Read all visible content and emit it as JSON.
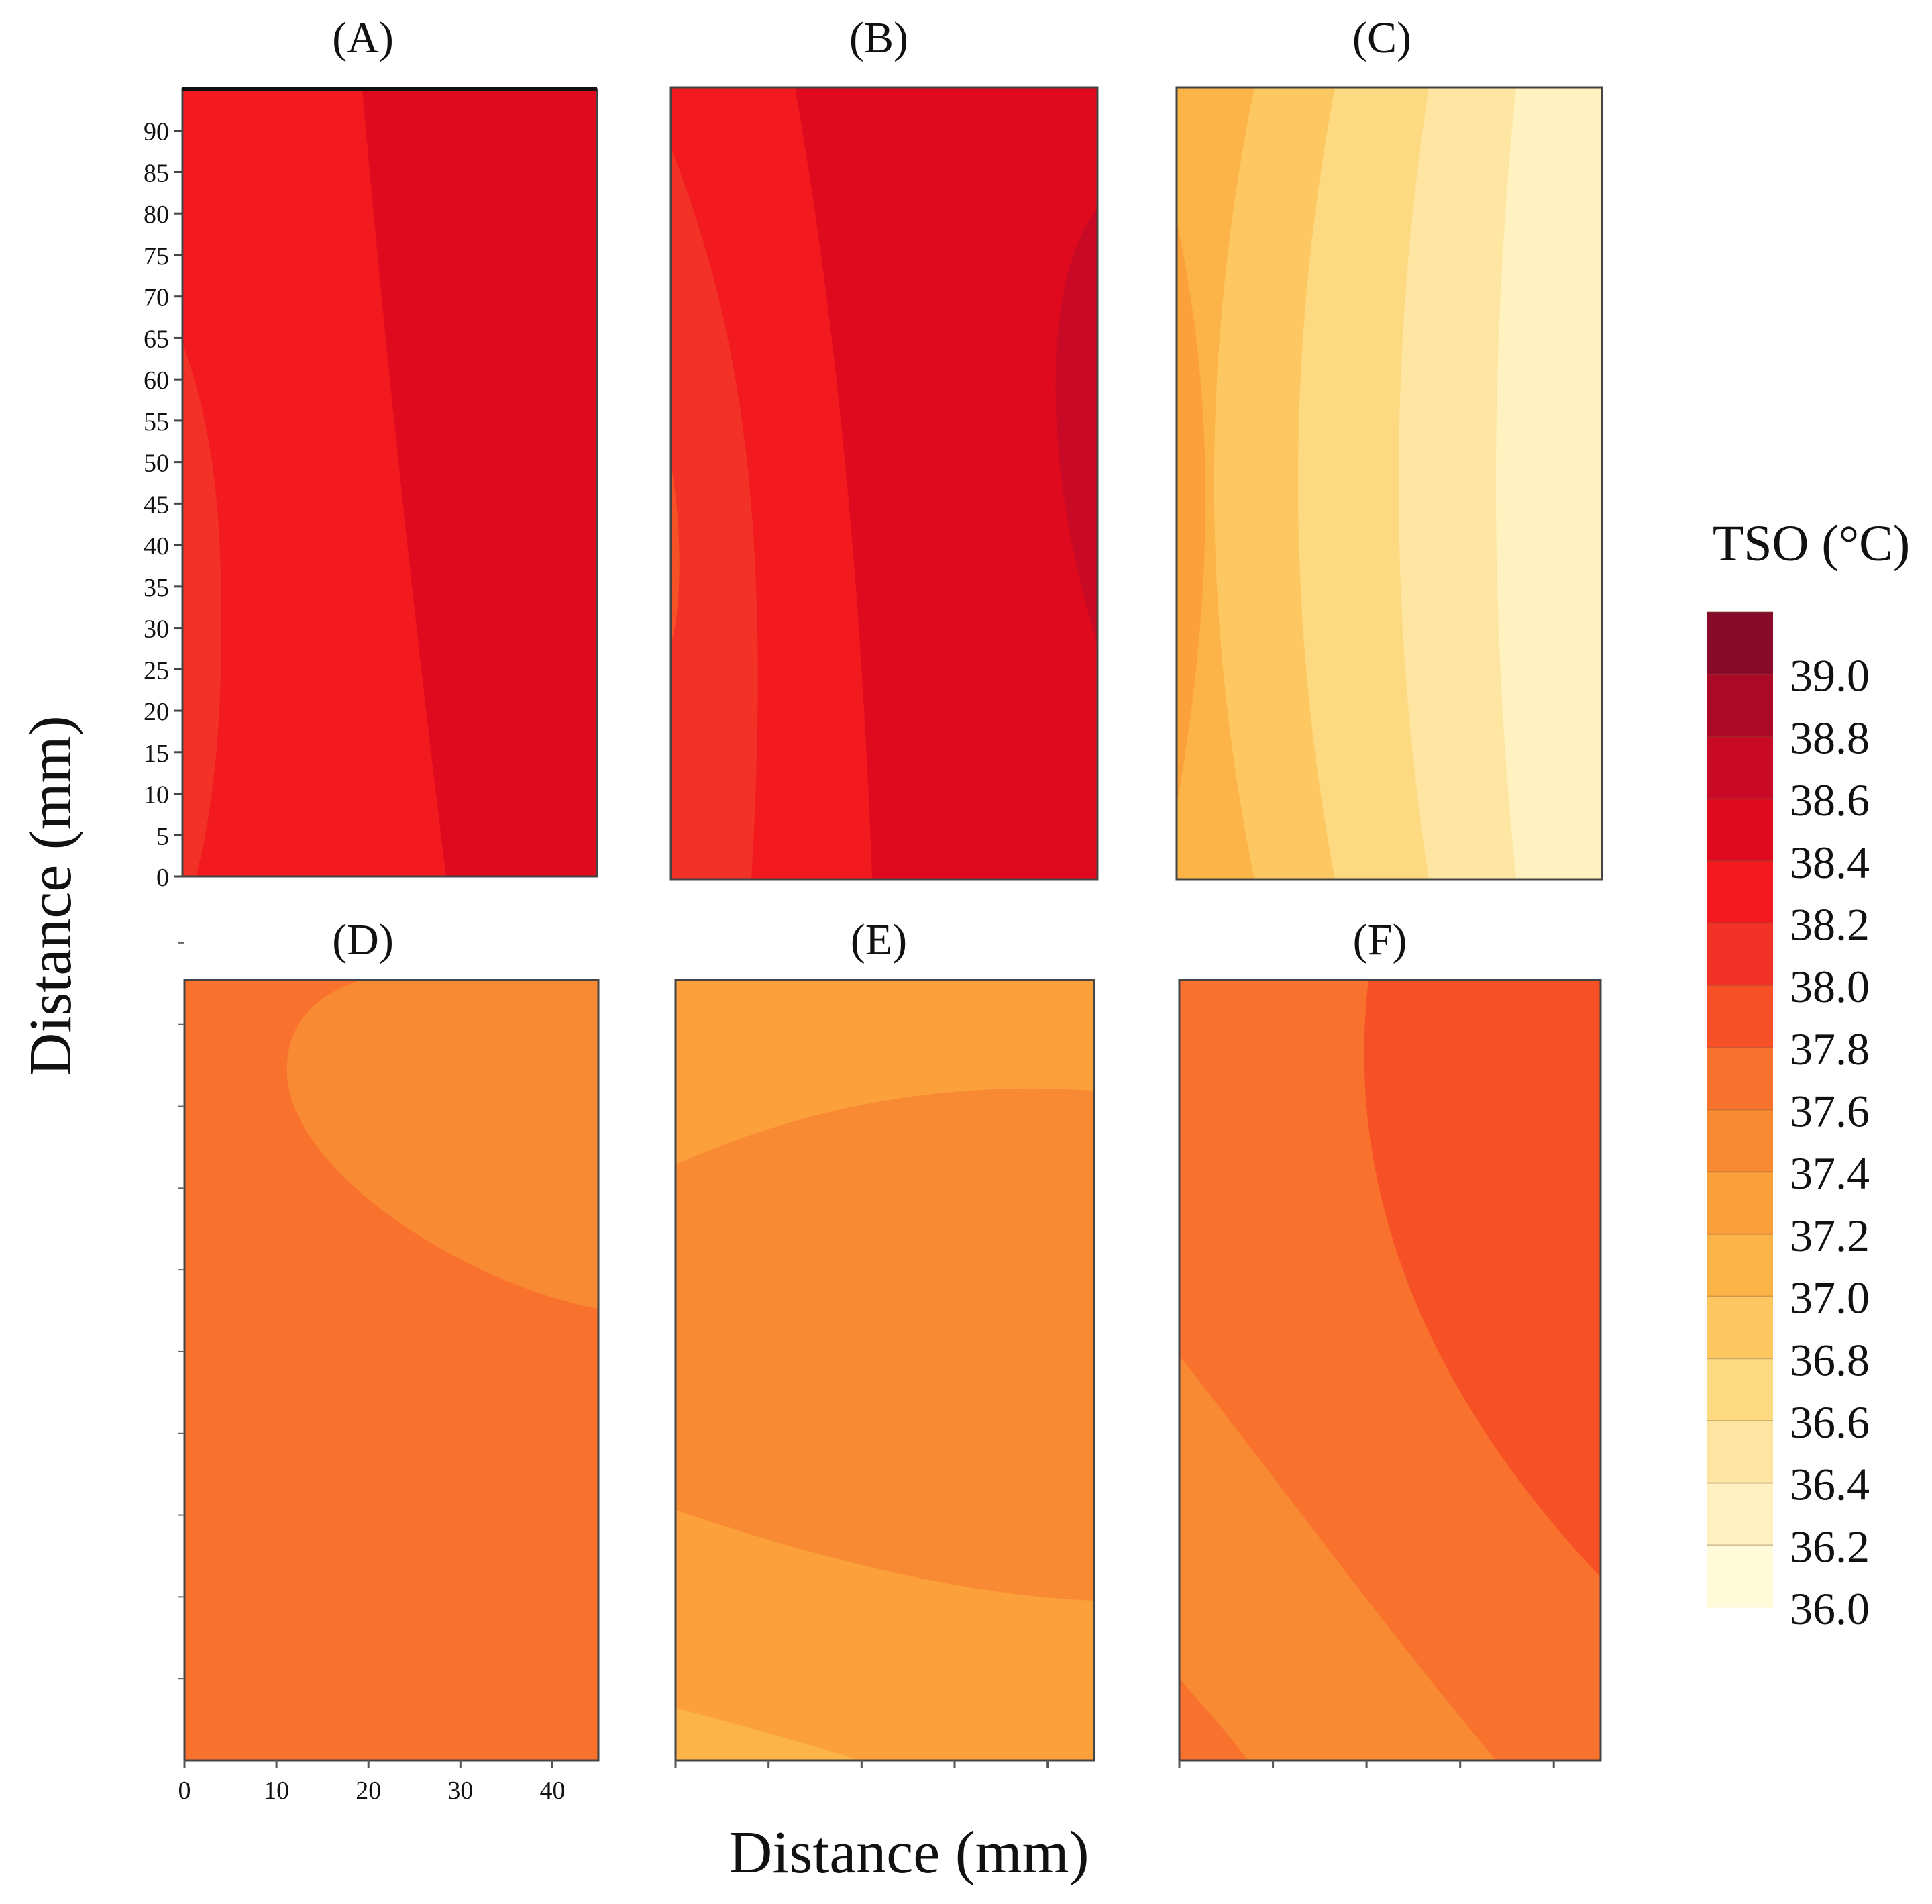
{
  "chart_data": [
    {
      "type": "heatmap",
      "panel": "(A)",
      "title": "(A)",
      "xlim": [
        0,
        45
      ],
      "ylim": [
        0,
        95
      ],
      "y_ticks": [
        "0",
        "5",
        "10",
        "15",
        "20",
        "25",
        "30",
        "35",
        "40",
        "45",
        "50",
        "55",
        "60",
        "65",
        "70",
        "75",
        "80",
        "85",
        "90"
      ],
      "regions": [
        {
          "value": 38.0,
          "description_value_range": [
            37.8,
            38.0
          ]
        },
        {
          "value": 38.2,
          "description_value_range": [
            38.0,
            38.2
          ]
        },
        {
          "value": 38.4,
          "description_value_range": [
            38.2,
            38.4
          ]
        }
      ]
    },
    {
      "type": "heatmap",
      "panel": "(B)",
      "title": "(B)",
      "xlim": [
        0,
        45
      ],
      "ylim": [
        0,
        95
      ],
      "regions": [
        {
          "value": 37.8
        },
        {
          "value": 38.0
        },
        {
          "value": 38.2
        },
        {
          "value": 38.4
        },
        {
          "value": 38.6
        }
      ]
    },
    {
      "type": "heatmap",
      "panel": "(C)",
      "title": "(C)",
      "xlim": [
        0,
        45
      ],
      "ylim": [
        0,
        95
      ],
      "regions": [
        {
          "value": 37.2
        },
        {
          "value": 37.0
        },
        {
          "value": 36.8
        },
        {
          "value": 36.6
        },
        {
          "value": 36.4
        },
        {
          "value": 36.2
        }
      ]
    },
    {
      "type": "heatmap",
      "panel": "(D)",
      "title": "(D)",
      "xlim": [
        0,
        45
      ],
      "ylim": [
        0,
        95
      ],
      "x_ticks": [
        "0",
        "10",
        "20",
        "30",
        "40"
      ],
      "regions": [
        {
          "value": 37.6
        },
        {
          "value": 37.4
        }
      ]
    },
    {
      "type": "heatmap",
      "panel": "(E)",
      "title": "(E)",
      "xlim": [
        0,
        45
      ],
      "ylim": [
        0,
        95
      ],
      "regions": [
        {
          "value": 37.4
        },
        {
          "value": 37.2
        },
        {
          "value": 37.0
        }
      ]
    },
    {
      "type": "heatmap",
      "panel": "(F)",
      "title": "(F)",
      "xlim": [
        0,
        45
      ],
      "ylim": [
        0,
        95
      ],
      "regions": [
        {
          "value": 37.8
        },
        {
          "value": 37.6
        },
        {
          "value": 37.4
        }
      ]
    }
  ],
  "axes": {
    "xlabel": "Distance (mm)",
    "ylabel": "Distance (mm)"
  },
  "colorbar": {
    "title": "TSO (°C)",
    "tick_labels": [
      "39.0",
      "38.8",
      "38.6",
      "38.4",
      "38.2",
      "38.0",
      "37.8",
      "37.6",
      "37.4",
      "37.2",
      "37.0",
      "36.8",
      "36.6",
      "36.4",
      "36.2",
      "36.0"
    ],
    "bands": [
      {
        "range": [
          38.9,
          39.1
        ],
        "color": "#870a28"
      },
      {
        "range": [
          38.7,
          38.9
        ],
        "color": "#ab0a26"
      },
      {
        "range": [
          38.5,
          38.7
        ],
        "color": "#c80a26"
      },
      {
        "range": [
          38.3,
          38.5
        ],
        "color": "#e00a1e"
      },
      {
        "range": [
          38.1,
          38.3
        ],
        "color": "#f21a1e"
      },
      {
        "range": [
          37.9,
          38.1
        ],
        "color": "#f23226"
      },
      {
        "range": [
          37.7,
          37.9
        ],
        "color": "#f65126"
      },
      {
        "range": [
          37.5,
          37.7
        ],
        "color": "#f8722e"
      },
      {
        "range": [
          37.3,
          37.5
        ],
        "color": "#f98a34"
      },
      {
        "range": [
          37.1,
          37.3
        ],
        "color": "#fba03a"
      },
      {
        "range": [
          36.9,
          37.1
        ],
        "color": "#fcb348"
      },
      {
        "range": [
          36.7,
          36.9
        ],
        "color": "#fdc862"
      },
      {
        "range": [
          36.5,
          36.7
        ],
        "color": "#fdd982"
      },
      {
        "range": [
          36.3,
          36.5
        ],
        "color": "#fee6a2"
      },
      {
        "range": [
          36.1,
          36.3
        ],
        "color": "#fff2c0"
      },
      {
        "range": [
          35.9,
          36.1
        ],
        "color": "#fffbd8"
      }
    ]
  }
}
